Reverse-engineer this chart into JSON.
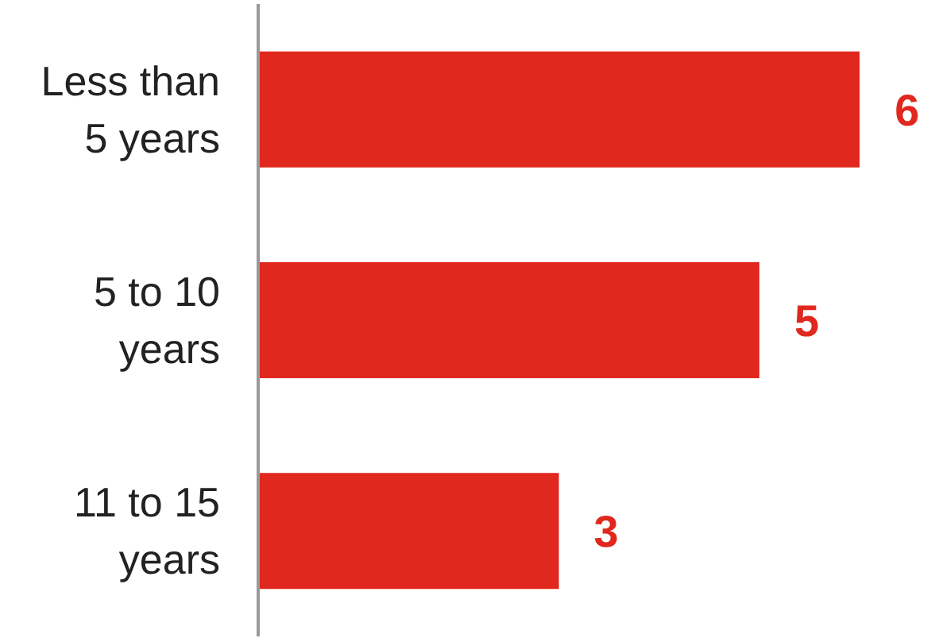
{
  "chart_data": {
    "type": "bar",
    "orientation": "horizontal",
    "categories": [
      "Less than\n5 years",
      "5 to 10\nyears",
      "11 to 15\nyears"
    ],
    "values": [
      6,
      5,
      3
    ],
    "color": "#e0281e",
    "data_labels": true,
    "grid": false,
    "tick_labels": "y"
  }
}
